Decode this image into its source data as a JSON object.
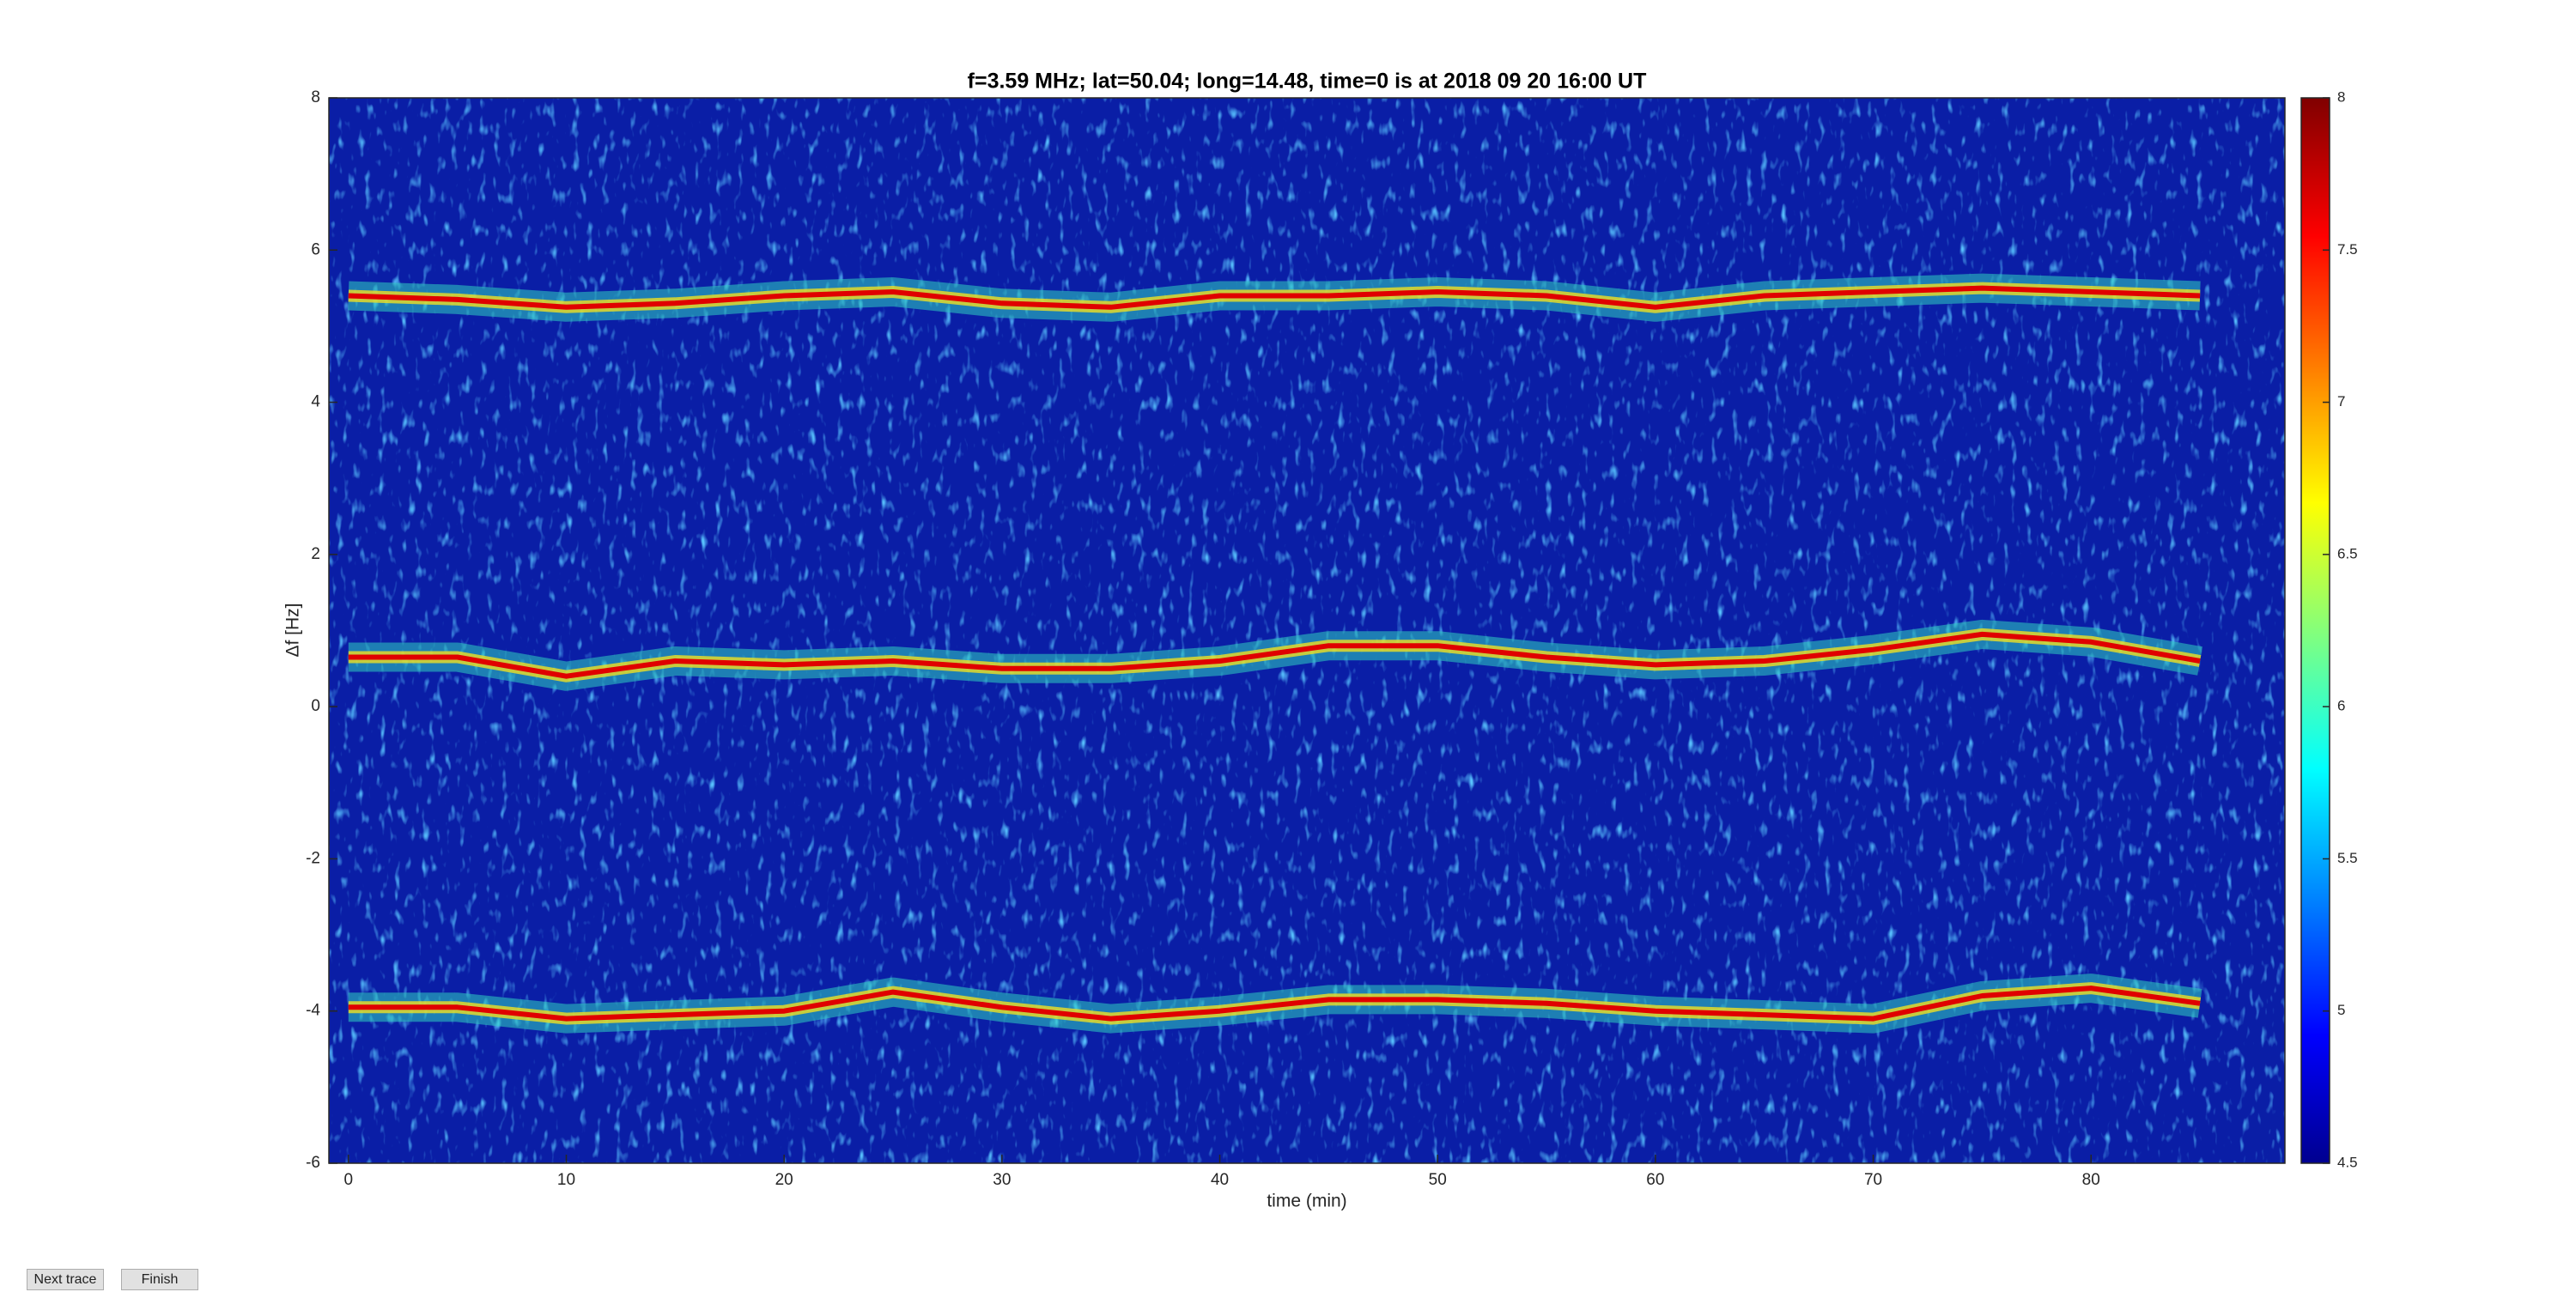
{
  "chart_data": {
    "type": "spectrogram",
    "title": "f=3.59 MHz;  lat=50.04; long=14.48, time=0 is at 2018 09 20 16:00 UT",
    "xlabel": "time (min)",
    "ylabel": "Δf [Hz]",
    "x": [
      0,
      5,
      10,
      15,
      20,
      25,
      30,
      35,
      40,
      45,
      50,
      55,
      60,
      65,
      70,
      75,
      80,
      85
    ],
    "series": [
      {
        "color": "#e00000",
        "values": [
          5.4,
          5.35,
          5.25,
          5.3,
          5.4,
          5.45,
          5.3,
          5.25,
          5.4,
          5.4,
          5.45,
          5.4,
          5.25,
          5.4,
          5.45,
          5.5,
          5.45,
          5.4
        ]
      },
      {
        "color": "#e00000",
        "values": [
          0.65,
          0.65,
          0.4,
          0.6,
          0.55,
          0.6,
          0.5,
          0.5,
          0.6,
          0.8,
          0.8,
          0.65,
          0.55,
          0.6,
          0.75,
          0.95,
          0.85,
          0.6
        ]
      },
      {
        "color": "#e00000",
        "values": [
          -3.95,
          -3.95,
          -4.1,
          -4.05,
          -4.0,
          -3.75,
          -3.95,
          -4.1,
          -4.0,
          -3.85,
          -3.85,
          -3.9,
          -4.0,
          -4.05,
          -4.1,
          -3.8,
          -3.7,
          -3.9
        ]
      }
    ],
    "xlim": [
      -0.9,
      88.9
    ],
    "xticks": [
      0,
      10,
      20,
      30,
      40,
      50,
      60,
      70,
      80
    ],
    "ylim": [
      -6,
      8
    ],
    "yticks": [
      -6,
      -4,
      -2,
      0,
      2,
      4,
      6,
      8
    ],
    "clim": [
      4.5,
      8
    ],
    "cticks": [
      4.5,
      5,
      5.5,
      6,
      6.5,
      7,
      7.5,
      8
    ],
    "colormap": "jet"
  },
  "buttons": [
    "Next trace",
    "Finish"
  ]
}
